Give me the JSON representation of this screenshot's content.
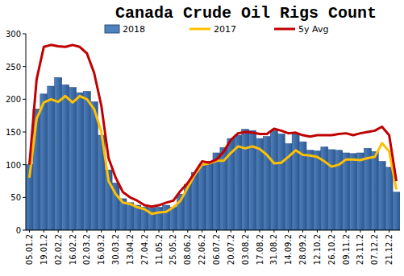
{
  "chart_data": {
    "type": "bar",
    "title": "Canada Crude Oil Rigs Count",
    "categories": [
      "05.01.2",
      null,
      "19.01.2",
      null,
      "02.02.2",
      null,
      "16.02.2",
      null,
      "02.03.2",
      null,
      "16.03.2",
      null,
      "30.03.2",
      null,
      "13.04.2",
      null,
      "27.04.2",
      null,
      "11.05.2",
      null,
      "25.05.2",
      null,
      "08.06.2",
      null,
      "22.06.2",
      null,
      "06.07.2",
      null,
      "20.07.2",
      null,
      "03.08.2",
      null,
      "17.08.2",
      null,
      "31.08.2",
      null,
      "14.09.2",
      null,
      "28.09.2",
      null,
      "12.10.2",
      null,
      "26.10.2",
      null,
      "09.11.2",
      null,
      "23.11.2",
      null,
      "07.12.2",
      null,
      "21.12.2",
      null
    ],
    "series": [
      {
        "name": "2018",
        "type": "bar",
        "color": "#4f81bd",
        "values": [
          100,
          185,
          208,
          220,
          233,
          222,
          218,
          210,
          212,
          196,
          145,
          92,
          72,
          48,
          42,
          38,
          35,
          34,
          35,
          38,
          35,
          55,
          70,
          88,
          100,
          105,
          118,
          126,
          140,
          145,
          154,
          152,
          140,
          143,
          152,
          147,
          132,
          148,
          135,
          122,
          121,
          127,
          123,
          122,
          118,
          117,
          118,
          125,
          120,
          105,
          96,
          58
        ]
      },
      {
        "name": "2017",
        "type": "line",
        "color": "#ffc000",
        "values": [
          80,
          170,
          195,
          200,
          196,
          205,
          195,
          205,
          200,
          185,
          150,
          75,
          55,
          42,
          40,
          35,
          32,
          25,
          27,
          28,
          35,
          45,
          65,
          85,
          100,
          102,
          106,
          106,
          118,
          128,
          125,
          128,
          124,
          115,
          102,
          103,
          112,
          122,
          115,
          114,
          112,
          105,
          97,
          100,
          108,
          108,
          107,
          110,
          112,
          133,
          120,
          62
        ]
      },
      {
        "name": "5y Avg",
        "type": "line",
        "color": "#c00000",
        "values": [
          100,
          230,
          280,
          283,
          281,
          280,
          283,
          280,
          270,
          240,
          190,
          110,
          80,
          58,
          50,
          45,
          38,
          36,
          38,
          42,
          45,
          60,
          72,
          88,
          105,
          103,
          108,
          120,
          138,
          148,
          150,
          149,
          147,
          147,
          155,
          152,
          148,
          149,
          145,
          143,
          145,
          145,
          145,
          147,
          148,
          145,
          148,
          150,
          152,
          158,
          145,
          75
        ]
      }
    ],
    "ylim": [
      0,
      300
    ],
    "yticks": [
      0,
      50,
      100,
      150,
      200,
      250,
      300
    ],
    "grid": false,
    "legend": "top"
  }
}
